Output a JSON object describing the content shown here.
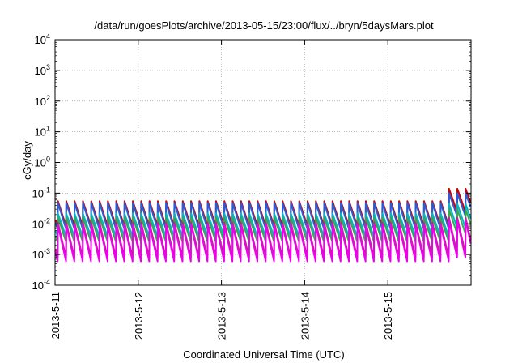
{
  "chart_data": {
    "type": "line",
    "title": "/data/run/goesPlots/archive/2013-05-15/23:00/flux/../bryn/5daysMars.plot",
    "xlabel": "Coordinated Universal Time (UTC)",
    "ylabel": "cGy/day",
    "y_scale": "log",
    "ylim": [
      0.0001,
      10000
    ],
    "y_ticks": [
      {
        "value": 0.0001,
        "base": "10",
        "exp": "-4"
      },
      {
        "value": 0.001,
        "base": "10",
        "exp": "-3"
      },
      {
        "value": 0.01,
        "base": "10",
        "exp": "-2"
      },
      {
        "value": 0.1,
        "base": "10",
        "exp": "-1"
      },
      {
        "value": 1,
        "base": "10",
        "exp": "0"
      },
      {
        "value": 10,
        "base": "10",
        "exp": "1"
      },
      {
        "value": 100,
        "base": "10",
        "exp": "2"
      },
      {
        "value": 1000,
        "base": "10",
        "exp": "3"
      },
      {
        "value": 10000,
        "base": "10",
        "exp": "4"
      }
    ],
    "x_range": [
      "2013-05-11 00:00",
      "2013-05-16 00:00"
    ],
    "x_ticks": [
      {
        "value": "2013-05-11",
        "label": "2013-5-11"
      },
      {
        "value": "2013-05-12",
        "label": "2013-5-12"
      },
      {
        "value": "2013-05-13",
        "label": "2013-5-13"
      },
      {
        "value": "2013-05-14",
        "label": "2013-5-14"
      },
      {
        "value": "2013-05-15",
        "label": "2013-5-15"
      }
    ],
    "grid": true,
    "legend": "none",
    "sawtooth_period_hours": 2.4,
    "series": [
      {
        "color": "#cc0000",
        "peak": 0.055,
        "trough": 0.0085,
        "late_peak": 0.14,
        "late_trough": 0.025
      },
      {
        "color": "#2a5bd7",
        "peak": 0.048,
        "trough": 0.0068,
        "late_peak": 0.1,
        "late_trough": 0.018
      },
      {
        "color": "#00b5c8",
        "peak": 0.022,
        "trough": 0.0038,
        "late_peak": 0.045,
        "late_trough": 0.0075
      },
      {
        "color": "#3aa655",
        "peak": 0.016,
        "trough": 0.0026,
        "late_peak": 0.03,
        "late_trough": 0.0048
      },
      {
        "color": "#c0258a",
        "peak": 0.011,
        "trough": 0.0008,
        "late_peak": 0.016,
        "late_trough": 0.0011
      },
      {
        "color": "#ee00ee",
        "peak": 0.009,
        "trough": 0.0006,
        "late_peak": 0.013,
        "late_trough": 0.0008
      }
    ],
    "late_start": "2013-05-15 16:00"
  }
}
